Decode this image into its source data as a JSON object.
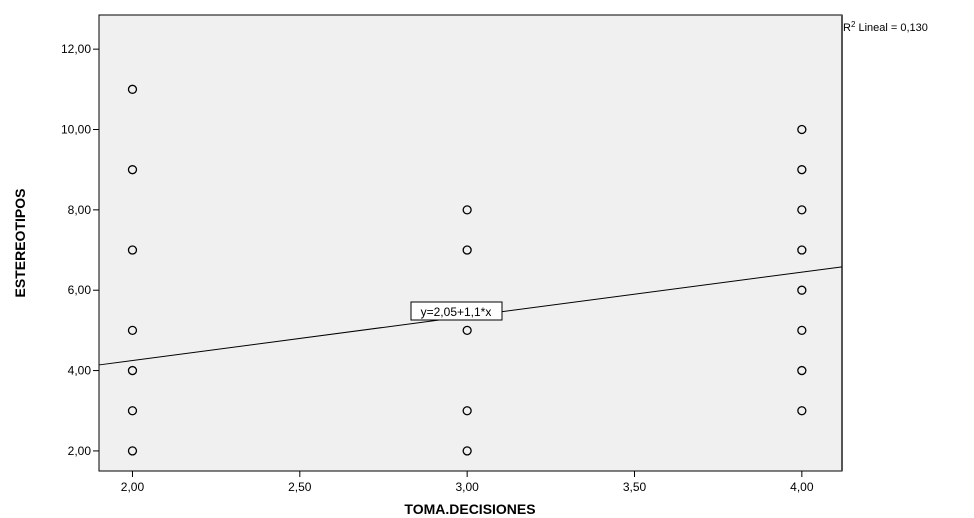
{
  "chart_data": {
    "type": "scatter",
    "xlabel": "TOMA.DECISIONES",
    "ylabel": "ESTEREOTIPOS",
    "xlim": [
      1.9,
      4.12
    ],
    "ylim": [
      1.5,
      12.85
    ],
    "x_ticks": [
      "2,00",
      "2,50",
      "3,00",
      "3,50",
      "4,00"
    ],
    "y_ticks": [
      "2,00",
      "4,00",
      "6,00",
      "8,00",
      "10,00",
      "12,00"
    ],
    "points": [
      {
        "x": 2,
        "y": 11
      },
      {
        "x": 2,
        "y": 9
      },
      {
        "x": 2,
        "y": 7
      },
      {
        "x": 2,
        "y": 5
      },
      {
        "x": 2,
        "y": 4
      },
      {
        "x": 2,
        "y": 3
      },
      {
        "x": 2,
        "y": 2
      },
      {
        "x": 3,
        "y": 8
      },
      {
        "x": 3,
        "y": 7
      },
      {
        "x": 3,
        "y": 5
      },
      {
        "x": 3,
        "y": 3
      },
      {
        "x": 3,
        "y": 2
      },
      {
        "x": 4,
        "y": 10
      },
      {
        "x": 4,
        "y": 9
      },
      {
        "x": 4,
        "y": 8
      },
      {
        "x": 4,
        "y": 7
      },
      {
        "x": 4,
        "y": 6
      },
      {
        "x": 4,
        "y": 5
      },
      {
        "x": 4,
        "y": 4
      },
      {
        "x": 4,
        "y": 3
      }
    ],
    "fit_line": {
      "intercept": 2.05,
      "slope": 1.1,
      "label": "y=2,05+1,1*x"
    },
    "r2_label": {
      "prefix": "R",
      "sup": "2",
      "text": " Lineal = 0,130"
    },
    "plot_background": "#f0f0f0",
    "grid": false
  }
}
